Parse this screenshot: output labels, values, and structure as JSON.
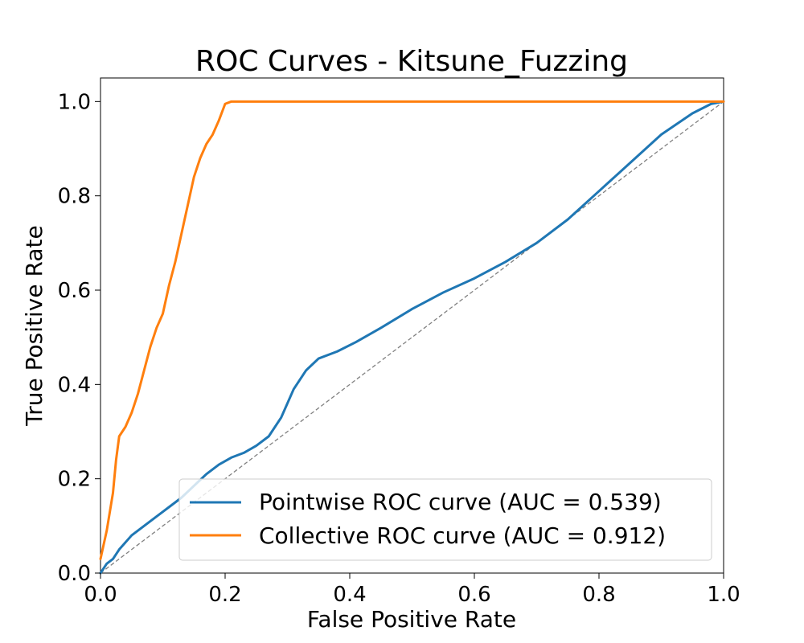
{
  "chart_data": {
    "type": "line",
    "title": "ROC Curves - Kitsune_Fuzzing",
    "xlabel": "False Positive Rate",
    "ylabel": "True Positive Rate",
    "xlim": [
      0.0,
      1.0
    ],
    "ylim": [
      0.0,
      1.05
    ],
    "xticks": [
      "0.0",
      "0.2",
      "0.4",
      "0.6",
      "0.8",
      "1.0"
    ],
    "yticks": [
      "0.0",
      "0.2",
      "0.4",
      "0.6",
      "0.8",
      "1.0"
    ],
    "grid": false,
    "legend_position": "lower-right",
    "series": [
      {
        "name": "Pointwise ROC curve (AUC = 0.539)",
        "color": "#1f77b4",
        "x": [
          0.0,
          0.01,
          0.02,
          0.03,
          0.05,
          0.07,
          0.09,
          0.11,
          0.13,
          0.15,
          0.17,
          0.19,
          0.21,
          0.23,
          0.25,
          0.27,
          0.29,
          0.31,
          0.33,
          0.35,
          0.38,
          0.41,
          0.45,
          0.5,
          0.55,
          0.6,
          0.65,
          0.7,
          0.75,
          0.8,
          0.85,
          0.9,
          0.95,
          0.98,
          1.0
        ],
        "y": [
          0.0,
          0.02,
          0.03,
          0.05,
          0.08,
          0.1,
          0.12,
          0.14,
          0.16,
          0.185,
          0.21,
          0.23,
          0.245,
          0.255,
          0.27,
          0.29,
          0.33,
          0.39,
          0.43,
          0.455,
          0.47,
          0.49,
          0.52,
          0.56,
          0.595,
          0.625,
          0.66,
          0.7,
          0.75,
          0.81,
          0.87,
          0.93,
          0.975,
          0.995,
          1.0
        ]
      },
      {
        "name": "Collective ROC curve (AUC = 0.912)",
        "color": "#ff7f0e",
        "x": [
          0.0,
          0.01,
          0.02,
          0.025,
          0.03,
          0.04,
          0.05,
          0.06,
          0.07,
          0.08,
          0.09,
          0.1,
          0.11,
          0.12,
          0.13,
          0.14,
          0.15,
          0.16,
          0.17,
          0.18,
          0.19,
          0.2,
          0.21,
          0.25,
          0.4,
          0.6,
          0.8,
          1.0
        ],
        "y": [
          0.03,
          0.09,
          0.17,
          0.24,
          0.29,
          0.31,
          0.34,
          0.38,
          0.43,
          0.48,
          0.52,
          0.55,
          0.61,
          0.66,
          0.72,
          0.78,
          0.84,
          0.88,
          0.91,
          0.93,
          0.96,
          0.995,
          1.0,
          1.0,
          1.0,
          1.0,
          1.0,
          1.0
        ]
      }
    ],
    "reference_line": {
      "x": [
        0.0,
        1.0
      ],
      "y": [
        0.0,
        1.0
      ],
      "color": "#808080",
      "style": "dashed"
    }
  }
}
